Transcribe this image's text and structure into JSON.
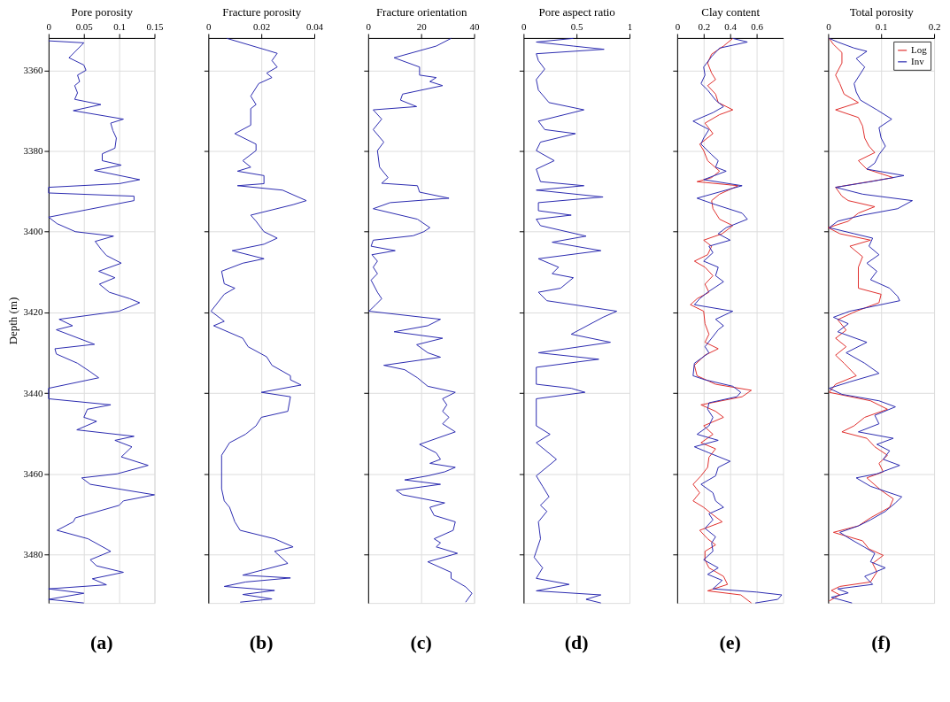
{
  "chart_data": [
    {
      "type": "line",
      "xlabel": "Pore porosity",
      "ylabel": "Depth (m)",
      "xlim": [
        0,
        0.15
      ],
      "xticks": [
        0,
        0.05,
        0.1,
        0.15
      ],
      "ylim": [
        3492,
        3352
      ],
      "yticks": [
        3360,
        3380,
        3400,
        3420,
        3440,
        3460,
        3480
      ],
      "grid": true,
      "annotations": [
        "(a)"
      ],
      "series": [
        {
          "color": "#2b2bb0",
          "x": [
            0,
            0.05,
            0.029,
            0.05,
            0.053,
            0.041,
            0.044,
            0.037,
            0.041,
            0.037,
            0.074,
            0.035,
            0.106,
            0.088,
            0.091,
            0.096,
            0.094,
            0.076,
            0.076,
            0.103,
            0.065,
            0.129,
            0.1,
            0,
            0,
            0.121,
            0.121,
            0,
            0.012,
            0.038,
            0.092,
            0.066,
            0.075,
            0.082,
            0.103,
            0.071,
            0.094,
            0.072,
            0.086,
            0.115,
            0.129,
            0.1,
            0.015,
            0.034,
            0.011,
            0.065,
            0.009,
            0.011,
            0.041,
            0.059,
            0.071,
            0,
            0,
            0.088,
            0.055,
            0.05,
            0.068,
            0.04,
            0.121,
            0.094,
            0.118,
            0.103,
            0.141,
            0.097,
            0.047,
            0.059,
            0.15,
            0.106,
            0.1,
            0.038,
            0.035,
            0.012,
            0.056,
            0.088,
            0.059,
            0.068,
            0.106,
            0.062,
            0.082,
            0,
            0.05,
            0,
            0.05
          ],
          "values": [
            3352.7,
            3353.2,
            3356.9,
            3358.7,
            3360,
            3361.2,
            3362.8,
            3363.8,
            3365.6,
            3367.2,
            3368.5,
            3370,
            3372.1,
            3373.1,
            3374.9,
            3376.8,
            3379.3,
            3380.7,
            3382.4,
            3383.5,
            3384.8,
            3387.1,
            3388.1,
            3389,
            3390.4,
            3391.2,
            3392.3,
            3396.4,
            3398,
            3400,
            3401.1,
            3402.4,
            3404.5,
            3405.9,
            3407.8,
            3409.8,
            3411.4,
            3413,
            3415,
            3416.6,
            3417.6,
            3419.7,
            3421.7,
            3423.3,
            3424.3,
            3427.9,
            3429,
            3430.3,
            3432.6,
            3434.7,
            3436.2,
            3438.8,
            3441.4,
            3442.9,
            3444,
            3446,
            3447,
            3449.1,
            3450.7,
            3451.7,
            3453.3,
            3455.8,
            3457.9,
            3460,
            3461,
            3462.6,
            3465.2,
            3466.7,
            3467.8,
            3470.9,
            3471.9,
            3474,
            3476.1,
            3479.2,
            3481.3,
            3482.8,
            3484.4,
            3486,
            3487.5,
            3488.5,
            3489.6,
            3491.1,
            3492
          ]
        }
      ]
    },
    {
      "type": "line",
      "xlabel": "Fracture porosity",
      "xlim": [
        0,
        0.04
      ],
      "xticks": [
        0,
        0.02,
        0.04
      ],
      "ylim": [
        3492,
        3352
      ],
      "yticks": [
        3360,
        3380,
        3400,
        3420,
        3440,
        3460,
        3480
      ],
      "grid": true,
      "tick_labels": "x",
      "annotations": [
        "(b)"
      ],
      "series": [
        {
          "color": "#2b2bb0",
          "x": [
            0.007,
            0.022,
            0.026,
            0.024,
            0.026,
            0.022,
            0.024,
            0.019,
            0.016,
            0.018,
            0.016,
            0.016,
            0.01,
            0.018,
            0.018,
            0.013,
            0.016,
            0.011,
            0.021,
            0.021,
            0.011,
            0.028,
            0.037,
            0.032,
            0.016,
            0.018,
            0.021,
            0.026,
            0.021,
            0.009,
            0.021,
            0.013,
            0.005,
            0.006,
            0.01,
            0.006,
            0.001,
            0.006,
            0.002,
            0.013,
            0.015,
            0.022,
            0.024,
            0.031,
            0.031,
            0.035,
            0.02,
            0.031,
            0.03,
            0.02,
            0.018,
            0.014,
            0.008,
            0.005,
            0.005,
            0.005,
            0.006,
            0.008,
            0.01,
            0.012,
            0.025,
            0.032,
            0.025,
            0.03,
            0.013,
            0.031,
            0.014,
            0.006,
            0.025,
            0.013,
            0.024,
            0.012
          ],
          "values": [
            3352.1,
            3355,
            3355.8,
            3357.6,
            3359.2,
            3360.7,
            3361.8,
            3363.3,
            3366.4,
            3368.5,
            3369.5,
            3373.6,
            3375.7,
            3378.3,
            3379.9,
            3382.4,
            3384,
            3385,
            3386.1,
            3388.1,
            3388.6,
            3389.7,
            3392.3,
            3393.3,
            3395.9,
            3397.4,
            3400,
            3401.6,
            3403.1,
            3404.7,
            3406.7,
            3407.8,
            3409.8,
            3412.9,
            3414,
            3415.5,
            3419.7,
            3422.2,
            3423.3,
            3426.4,
            3428.5,
            3431,
            3433.1,
            3435.7,
            3436.7,
            3438,
            3439.8,
            3440.9,
            3444.5,
            3446,
            3448.1,
            3450.2,
            3452.3,
            3455.4,
            3459.5,
            3463.7,
            3466.7,
            3468.3,
            3471.9,
            3474,
            3476.1,
            3478.1,
            3479.2,
            3482.2,
            3485.1,
            3485.8,
            3486.8,
            3487.9,
            3488.9,
            3489.9,
            3491,
            3491.8
          ]
        }
      ]
    },
    {
      "type": "line",
      "xlabel": "Fracture orientation",
      "xlim": [
        0,
        40
      ],
      "xticks": [
        0,
        20,
        40
      ],
      "ylim": [
        3492,
        3352
      ],
      "yticks": [
        3360,
        3380,
        3400,
        3420,
        3440,
        3460,
        3480
      ],
      "grid": true,
      "tick_labels": "x",
      "annotations": [
        "(c)"
      ],
      "series": [
        {
          "color": "#2b2bb0",
          "x": [
            31.3,
            25.7,
            9.8,
            19.4,
            19.4,
            25.7,
            23.3,
            28.1,
            13,
            12.2,
            18.3,
            1.9,
            5.1,
            1.9,
            5.9,
            3.5,
            4.3,
            7.5,
            5.1,
            18.6,
            19.4,
            30.5,
            8.3,
            1.9,
            18.6,
            23.3,
            21,
            17,
            1.9,
            1.1,
            10.2,
            1.4,
            3.5,
            1.9,
            3.5,
            1.1,
            3.5,
            5.1,
            2.7,
            0.3,
            27.3,
            22.5,
            9.8,
            28.1,
            18.3,
            22.5,
            27.3,
            5.9,
            13.8,
            18.6,
            22.5,
            32.9,
            28.1,
            29.7,
            28.1,
            30.5,
            28.1,
            32.9,
            19.4,
            25.7,
            27.3,
            23.3,
            32.9,
            28.9,
            22.5,
            13.8,
            27.3,
            10.6,
            13,
            28.9,
            23.3,
            24.9,
            32.9,
            32.1,
            24.9,
            27.3,
            25.7,
            33.7,
            22.5,
            31.3,
            31.3,
            36.8,
            39.2,
            36.8
          ],
          "values": [
            3352.1,
            3354,
            3356.9,
            3359.2,
            3361.2,
            3361.8,
            3362.8,
            3363.8,
            3365.9,
            3367.4,
            3369,
            3369.8,
            3372.1,
            3374.7,
            3377.8,
            3379.9,
            3384,
            3386.6,
            3388,
            3388.6,
            3390.2,
            3391.7,
            3392.8,
            3394.3,
            3396.9,
            3399,
            3400,
            3401,
            3402.1,
            3403.6,
            3404.7,
            3405.7,
            3407.3,
            3408.8,
            3410.4,
            3412,
            3415,
            3416.6,
            3418.2,
            3419.7,
            3421.7,
            3423.3,
            3424.8,
            3426.4,
            3428,
            3430,
            3431.1,
            3433.1,
            3434.2,
            3436.2,
            3438.3,
            3439.8,
            3441.4,
            3442.9,
            3444.5,
            3446,
            3447.6,
            3449.6,
            3452.7,
            3454.8,
            3456.4,
            3457.4,
            3458.4,
            3459.5,
            3460.5,
            3461.5,
            3462.6,
            3464.1,
            3465.2,
            3467.2,
            3468.3,
            3470.3,
            3471.9,
            3474,
            3476.1,
            3477.1,
            3478.1,
            3479.7,
            3481.8,
            3484.4,
            3485.9,
            3488,
            3489.6,
            3491.8
          ]
        }
      ]
    },
    {
      "type": "line",
      "xlabel": "Pore aspect ratio",
      "xlim": [
        0,
        1
      ],
      "xticks": [
        0,
        0.5,
        1
      ],
      "ylim": [
        3492,
        3352
      ],
      "yticks": [
        3360,
        3380,
        3400,
        3420,
        3440,
        3460,
        3480
      ],
      "grid": true,
      "tick_labels": "x",
      "annotations": [
        "(d)"
      ],
      "series": [
        {
          "color": "#2b2bb0",
          "x": [
            0.47,
            0.12,
            0.47,
            0.76,
            0.12,
            0.14,
            0.2,
            0.12,
            0.14,
            0.24,
            0.57,
            0.14,
            0.2,
            0.49,
            0.16,
            0.12,
            0.29,
            0.12,
            0.16,
            0.57,
            0.12,
            0.75,
            0.14,
            0.14,
            0.45,
            0.12,
            0.16,
            0.59,
            0.27,
            0.73,
            0.14,
            0.33,
            0.27,
            0.47,
            0.35,
            0.14,
            0.22,
            0.88,
            0.75,
            0.45,
            0.82,
            0.14,
            0.71,
            0.12,
            0.12,
            0.45,
            0.58,
            0.12,
            0.12,
            0.25,
            0.12,
            0.31,
            0.12,
            0.18,
            0.24,
            0.16,
            0.22,
            0.14,
            0.16,
            0.1,
            0.18,
            0.12,
            0.43,
            0.12,
            0.73,
            0.59,
            0.73
          ],
          "values": [
            3352.1,
            3353,
            3354,
            3354.8,
            3355.9,
            3357.6,
            3359.7,
            3362.3,
            3364.9,
            3368,
            3369.8,
            3372.6,
            3374.7,
            3375.7,
            3377.8,
            3379.9,
            3382.4,
            3384.5,
            3387.6,
            3388.6,
            3389.7,
            3391.4,
            3392.8,
            3394.8,
            3395.9,
            3396.9,
            3398.5,
            3401.1,
            3402.6,
            3404.7,
            3406.7,
            3408.8,
            3410.4,
            3411.4,
            3414,
            3415,
            3417.1,
            3419.7,
            3421.2,
            3425.4,
            3427.4,
            3430,
            3431.6,
            3433.6,
            3437.8,
            3438.8,
            3439.8,
            3441.4,
            3448.1,
            3450.2,
            3452.3,
            3456.4,
            3460.5,
            3463.1,
            3465.7,
            3467.8,
            3469.3,
            3471.9,
            3476.1,
            3480.7,
            3483.3,
            3485.9,
            3487.4,
            3489,
            3490,
            3491.1,
            3492
          ]
        }
      ]
    },
    {
      "type": "line",
      "xlabel": "Clay content",
      "xlim": [
        0,
        0.8
      ],
      "xticks": [
        0,
        0.2,
        0.4,
        0.6
      ],
      "ylim": [
        3492,
        3352
      ],
      "yticks": [
        3360,
        3380,
        3400,
        3420,
        3440,
        3460,
        3480
      ],
      "grid": true,
      "tick_labels": "x",
      "annotations": [
        "(e)"
      ],
      "series": [
        {
          "color": "#e0302e",
          "x": [
            0.42,
            0.35,
            0.26,
            0.23,
            0.26,
            0.29,
            0.23,
            0.29,
            0.31,
            0.42,
            0.32,
            0.21,
            0.27,
            0.17,
            0.2,
            0.23,
            0.32,
            0.26,
            0.15,
            0.46,
            0.32,
            0.26,
            0.27,
            0.32,
            0.42,
            0.34,
            0.2,
            0.26,
            0.23,
            0.13,
            0.21,
            0.27,
            0.21,
            0.24,
            0.15,
            0.1,
            0.2,
            0.21,
            0.24,
            0.21,
            0.31,
            0.21,
            0.13,
            0.15,
            0.29,
            0.56,
            0.49,
            0.18,
            0.29,
            0.35,
            0.2,
            0.27,
            0.18,
            0.29,
            0.24,
            0.23,
            0.18,
            0.12,
            0.17,
            0.12,
            0.2,
            0.26,
            0.34,
            0.17,
            0.23,
            0.29,
            0.21,
            0.21,
            0.24,
            0.35,
            0.38,
            0.23,
            0.48,
            0.56
          ],
          "values": [
            3352.1,
            3354,
            3356,
            3358.2,
            3360.7,
            3362.3,
            3363.8,
            3365.9,
            3368,
            3369.8,
            3371,
            3373.1,
            3375.7,
            3378.3,
            3379.9,
            3382.4,
            3385,
            3386.6,
            3387.6,
            3388.6,
            3390.7,
            3392.3,
            3394.3,
            3396.9,
            3398.5,
            3400.5,
            3402.1,
            3403.6,
            3405.7,
            3407.3,
            3408.8,
            3410.9,
            3413,
            3415,
            3416.6,
            3418.1,
            3419.7,
            3422.8,
            3425.4,
            3427.4,
            3429,
            3430.6,
            3433.1,
            3435.7,
            3437.8,
            3439.3,
            3440.9,
            3442.9,
            3444.5,
            3446,
            3448.1,
            3450.2,
            3452.3,
            3453.8,
            3455.9,
            3458.4,
            3460.5,
            3462.6,
            3464.7,
            3466.7,
            3468.3,
            3469.9,
            3471.9,
            3474,
            3476.1,
            3477.6,
            3479.2,
            3481.3,
            3483.3,
            3485.4,
            3487.4,
            3489,
            3490,
            3492
          ]
        },
        {
          "color": "#2b2bb0",
          "x": [
            0.42,
            0.53,
            0.32,
            0.26,
            0.2,
            0.21,
            0.18,
            0.23,
            0.29,
            0.35,
            0.27,
            0.12,
            0.24,
            0.2,
            0.18,
            0.26,
            0.31,
            0.29,
            0.37,
            0.2,
            0.49,
            0.15,
            0.29,
            0.49,
            0.53,
            0.37,
            0.31,
            0.4,
            0.24,
            0.27,
            0.2,
            0.31,
            0.29,
            0.35,
            0.23,
            0.17,
            0.13,
            0.42,
            0.29,
            0.35,
            0.31,
            0.26,
            0.21,
            0.24,
            0.13,
            0.12,
            0.21,
            0.42,
            0.48,
            0.45,
            0.24,
            0.23,
            0.27,
            0.24,
            0.15,
            0.31,
            0.13,
            0.24,
            0.4,
            0.31,
            0.29,
            0.18,
            0.27,
            0.29,
            0.35,
            0.24,
            0.27,
            0.21,
            0.29,
            0.26,
            0.27,
            0.2,
            0.31,
            0.23,
            0.34,
            0.27,
            0.6,
            0.79,
            0.76,
            0.59
          ],
          "values": [
            3352.1,
            3353,
            3354.5,
            3356.6,
            3359.2,
            3361.2,
            3363.3,
            3364.9,
            3367.4,
            3369,
            3370.5,
            3372.6,
            3374.7,
            3376.8,
            3378.3,
            3380.9,
            3382.4,
            3384,
            3385,
            3387.1,
            3388.6,
            3391.7,
            3393.3,
            3395.4,
            3396.9,
            3399,
            3400.5,
            3402.1,
            3403.6,
            3405.2,
            3407.3,
            3408.8,
            3410.9,
            3412.4,
            3415,
            3416.6,
            3418.1,
            3419.7,
            3421.7,
            3423.3,
            3424.3,
            3426.4,
            3428.5,
            3430,
            3432.6,
            3435.7,
            3436.7,
            3438.3,
            3439.8,
            3440.9,
            3442.4,
            3444,
            3446,
            3448.1,
            3450.2,
            3451.7,
            3453.3,
            3454.8,
            3456.9,
            3458.4,
            3460.5,
            3462.6,
            3464.7,
            3466.7,
            3468.3,
            3469.9,
            3471.4,
            3473.5,
            3475.6,
            3477.1,
            3479.2,
            3481.3,
            3483.3,
            3484.9,
            3486.4,
            3488.5,
            3489.3,
            3490,
            3491.1,
            3492
          ]
        }
      ]
    },
    {
      "type": "line",
      "xlabel": "Total porosity",
      "xlim": [
        0,
        0.2
      ],
      "xticks": [
        0,
        0.1,
        0.2
      ],
      "ylim": [
        3492,
        3352
      ],
      "yticks": [
        3360,
        3380,
        3400,
        3420,
        3440,
        3460,
        3480
      ],
      "grid": true,
      "tick_labels": "x",
      "legend": "top right",
      "annotations": [
        "(f)"
      ],
      "series": [
        {
          "name": "Log",
          "color": "#e0302e",
          "x": [
            0.002,
            0.01,
            0.026,
            0.026,
            0.014,
            0.022,
            0.03,
            0.057,
            0.014,
            0.057,
            0.065,
            0.069,
            0.077,
            0.088,
            0.057,
            0.073,
            0.123,
            0.014,
            0.026,
            0.038,
            0.088,
            0.057,
            0.038,
            0,
            0.022,
            0.08,
            0.041,
            0.065,
            0.057,
            0.057,
            0.057,
            0.1,
            0.096,
            0.053,
            0.018,
            0.034,
            0.014,
            0.034,
            0.014,
            0.03,
            0.053,
            0.014,
            0.002,
            0.08,
            0.112,
            0.069,
            0.049,
            0.026,
            0.073,
            0.088,
            0.112,
            0.096,
            0.104,
            0.073,
            0.1,
            0.123,
            0.116,
            0.08,
            0.057,
            0.01,
            0.065,
            0.077,
            0.104,
            0.084,
            0.092,
            0.08,
            0.022,
            0.006,
            0.022,
            0.002
          ],
          "values": [
            3352.1,
            3353.6,
            3355.6,
            3358.2,
            3361.2,
            3363.3,
            3365.9,
            3368,
            3369.8,
            3371.7,
            3373.8,
            3376.8,
            3378.8,
            3380.4,
            3382.4,
            3384.5,
            3386.6,
            3389,
            3391.2,
            3392.3,
            3393.8,
            3395.4,
            3397.4,
            3399,
            3400.5,
            3402.1,
            3403.6,
            3406.2,
            3408.8,
            3411.9,
            3414,
            3415.5,
            3417.6,
            3419.7,
            3421.8,
            3424.4,
            3426.4,
            3428.5,
            3430.6,
            3432.6,
            3435.7,
            3437.8,
            3439.8,
            3441.9,
            3444,
            3446,
            3448.1,
            3449.6,
            3451.2,
            3453.3,
            3455.4,
            3457.4,
            3459.5,
            3461,
            3464.1,
            3466.2,
            3468.3,
            3470.9,
            3472.9,
            3474.5,
            3476.6,
            3478.6,
            3480.2,
            3482.2,
            3484.3,
            3486.8,
            3487.9,
            3488.9,
            3490,
            3491.5
          ]
        },
        {
          "name": "Inv",
          "color": "#2b2bb0",
          "x": [
            0.002,
            0.018,
            0.049,
            0.073,
            0.053,
            0.069,
            0.049,
            0.053,
            0.061,
            0.092,
            0.12,
            0.096,
            0.1,
            0.108,
            0.096,
            0.088,
            0.073,
            0.143,
            0.08,
            0.014,
            0.065,
            0.159,
            0.131,
            0.065,
            0.018,
            0.002,
            0.049,
            0.084,
            0.077,
            0.096,
            0.073,
            0.092,
            0.08,
            0.116,
            0.131,
            0.135,
            0.041,
            0.01,
            0.038,
            0.018,
            0.073,
            0.034,
            0.069,
            0.096,
            0.041,
            0.002,
            0.026,
            0.096,
            0.127,
            0.088,
            0.096,
            0.057,
            0.123,
            0.092,
            0.116,
            0.104,
            0.135,
            0.092,
            0.053,
            0.08,
            0.139,
            0.127,
            0.108,
            0.08,
            0.057,
            0.022,
            0.041,
            0.069,
            0.088,
            0.08,
            0.108,
            0.069,
            0.084,
            0.018,
            0.038,
            0.006,
            0.045
          ],
          "values": [
            3352.1,
            3353,
            3354.5,
            3355.3,
            3357.1,
            3359.2,
            3363.3,
            3365.4,
            3367.4,
            3369.8,
            3372.1,
            3374.2,
            3376.8,
            3378.8,
            3380.9,
            3383,
            3384.5,
            3386.1,
            3387.6,
            3389,
            3390.7,
            3392.3,
            3394.3,
            3395.9,
            3397.4,
            3399,
            3400.5,
            3401.6,
            3403.6,
            3405.7,
            3407.8,
            3409.8,
            3411.9,
            3414,
            3416,
            3417.1,
            3419.7,
            3421.2,
            3422.8,
            3424.8,
            3427.4,
            3430,
            3432.6,
            3435.1,
            3437.2,
            3438.8,
            3440.3,
            3441.9,
            3443.4,
            3445.5,
            3447.6,
            3449.6,
            3451.2,
            3452.7,
            3454.3,
            3456.4,
            3457.9,
            3460,
            3461,
            3463.1,
            3465.7,
            3467.2,
            3469.3,
            3471.4,
            3472.9,
            3474.5,
            3476.1,
            3478.2,
            3479.7,
            3481.8,
            3483.3,
            3485.4,
            3487.4,
            3488.5,
            3489.5,
            3490.6,
            3492
          ]
        }
      ]
    }
  ]
}
